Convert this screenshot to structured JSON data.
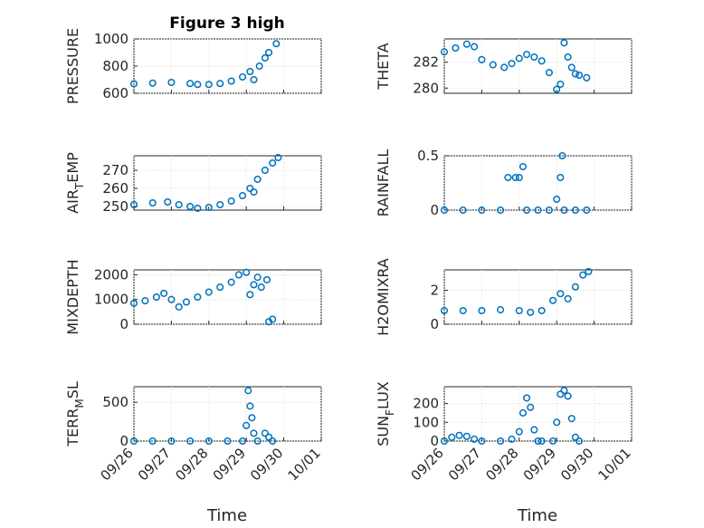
{
  "figure": {
    "title": "Figure 3 high",
    "xlabel": "Time",
    "colors": {
      "marker": "#0072BD",
      "axis": "#262626",
      "background": "#ffffff"
    },
    "xticks": [
      "09/26",
      "09/27",
      "09/28",
      "09/29",
      "09/30",
      "10/01"
    ]
  },
  "chart_data": [
    {
      "type": "scatter",
      "ylabel": "PRESSURE",
      "grid": true,
      "xlim": [
        0,
        5
      ],
      "ylim": [
        600,
        1000
      ],
      "yticks": [
        600,
        800,
        1000
      ],
      "series": [
        {
          "x": [
            0,
            0.5,
            1,
            1.5,
            1.7,
            2,
            2.3,
            2.6,
            2.9,
            3.1,
            3.2,
            3.35,
            3.5,
            3.6,
            3.8
          ],
          "y": [
            670,
            675,
            680,
            672,
            665,
            665,
            672,
            690,
            720,
            760,
            700,
            800,
            860,
            900,
            965
          ]
        }
      ]
    },
    {
      "type": "scatter",
      "ylabel": "THETA",
      "grid": true,
      "xlim": [
        0,
        5
      ],
      "ylim": [
        279.6,
        283.8
      ],
      "yticks": [
        280,
        282
      ],
      "series": [
        {
          "x": [
            0,
            0.3,
            0.6,
            0.8,
            1,
            1.3,
            1.6,
            1.8,
            2,
            2.2,
            2.4,
            2.6,
            2.8,
            3,
            3.1,
            3.2,
            3.3,
            3.4,
            3.5,
            3.6,
            3.8
          ],
          "y": [
            282.8,
            283.1,
            283.4,
            283.2,
            282.2,
            281.8,
            281.6,
            281.9,
            282.3,
            282.6,
            282.4,
            282.1,
            281.2,
            279.9,
            280.3,
            283.5,
            282.4,
            281.6,
            281.1,
            281.0,
            280.8
          ]
        }
      ]
    },
    {
      "type": "scatter",
      "ylabel": "AIR_T EMP",
      "grid": true,
      "xlim": [
        0,
        5
      ],
      "ylim": [
        248,
        278
      ],
      "yticks": [
        250,
        260,
        270
      ],
      "series": [
        {
          "x": [
            0,
            0.5,
            0.9,
            1.2,
            1.5,
            1.7,
            2,
            2.3,
            2.6,
            2.9,
            3.1,
            3.2,
            3.3,
            3.5,
            3.7,
            3.85
          ],
          "y": [
            251,
            252,
            252.5,
            251,
            250,
            249,
            249.5,
            251,
            253,
            256,
            260,
            258,
            265,
            270,
            274,
            277
          ]
        }
      ]
    },
    {
      "type": "scatter",
      "ylabel": "RAINFALL",
      "grid": true,
      "xlim": [
        0,
        5
      ],
      "ylim": [
        0,
        0.5
      ],
      "yticks": [
        0,
        0.5
      ],
      "series": [
        {
          "x": [
            0,
            0.5,
            1,
            1.5,
            1.7,
            1.9,
            2,
            2.1,
            2.2,
            2.5,
            2.8,
            3.0,
            3.1,
            3.15,
            3.2,
            3.5,
            3.8
          ],
          "y": [
            0,
            0,
            0,
            0,
            0.3,
            0.3,
            0.3,
            0.4,
            0,
            0,
            0,
            0.1,
            0.3,
            0.5,
            0,
            0,
            0
          ]
        }
      ]
    },
    {
      "type": "scatter",
      "ylabel": "MIXDEPTH",
      "grid": true,
      "xlim": [
        0,
        5
      ],
      "ylim": [
        0,
        2200
      ],
      "yticks": [
        0,
        1000,
        2000
      ],
      "series": [
        {
          "x": [
            0,
            0.3,
            0.6,
            0.8,
            1,
            1.2,
            1.4,
            1.7,
            2,
            2.3,
            2.6,
            2.8,
            3.0,
            3.1,
            3.2,
            3.3,
            3.4,
            3.55,
            3.6,
            3.7
          ],
          "y": [
            850,
            950,
            1100,
            1250,
            1000,
            700,
            900,
            1100,
            1300,
            1500,
            1700,
            2000,
            2100,
            1200,
            1600,
            1900,
            1500,
            1800,
            100,
            200
          ]
        }
      ]
    },
    {
      "type": "scatter",
      "ylabel": "H2OMIXRA",
      "grid": true,
      "xlim": [
        0,
        5
      ],
      "ylim": [
        0,
        3.2
      ],
      "yticks": [
        0,
        2
      ],
      "series": [
        {
          "x": [
            0,
            0.5,
            1,
            1.5,
            2,
            2.3,
            2.6,
            2.9,
            3.1,
            3.3,
            3.5,
            3.7,
            3.85
          ],
          "y": [
            0.8,
            0.8,
            0.8,
            0.85,
            0.8,
            0.7,
            0.8,
            1.4,
            1.8,
            1.5,
            2.2,
            2.9,
            3.1
          ]
        }
      ]
    },
    {
      "type": "scatter",
      "ylabel": "TERR_M SL",
      "grid": true,
      "xlim": [
        0,
        5
      ],
      "ylim": [
        0,
        700
      ],
      "yticks": [
        0,
        500
      ],
      "series": [
        {
          "x": [
            0,
            0.5,
            1,
            1.5,
            2,
            2.5,
            2.9,
            3.0,
            3.05,
            3.1,
            3.15,
            3.2,
            3.3,
            3.5,
            3.6,
            3.7
          ],
          "y": [
            0,
            0,
            0,
            0,
            0,
            0,
            0,
            200,
            650,
            450,
            300,
            100,
            0,
            100,
            50,
            0
          ]
        }
      ]
    },
    {
      "type": "scatter",
      "ylabel": "SUN_F LUX",
      "grid": true,
      "xlim": [
        0,
        5
      ],
      "ylim": [
        0,
        290
      ],
      "yticks": [
        0,
        100,
        200
      ],
      "series": [
        {
          "x": [
            0,
            0.2,
            0.4,
            0.6,
            0.8,
            1,
            1.5,
            1.8,
            2,
            2.1,
            2.2,
            2.3,
            2.4,
            2.5,
            2.6,
            2.9,
            3.0,
            3.1,
            3.2,
            3.3,
            3.4,
            3.5,
            3.6
          ],
          "y": [
            0,
            20,
            30,
            25,
            10,
            0,
            0,
            10,
            50,
            150,
            230,
            180,
            60,
            0,
            0,
            0,
            100,
            250,
            270,
            240,
            120,
            20,
            0
          ]
        }
      ]
    }
  ]
}
